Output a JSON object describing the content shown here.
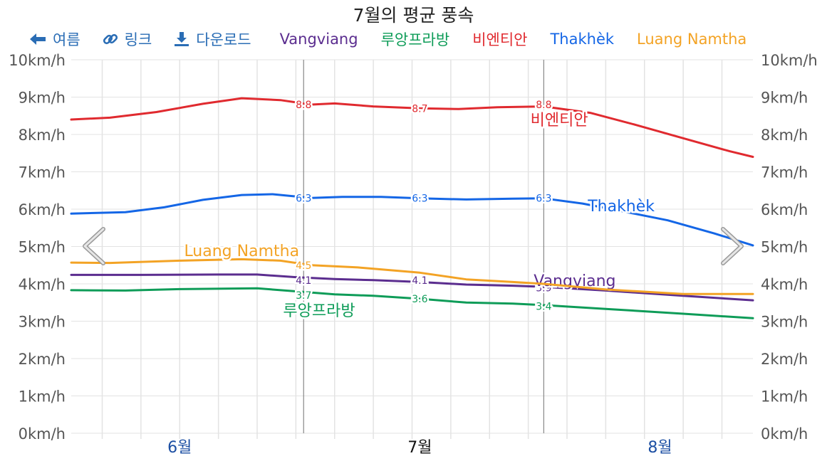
{
  "title": "7월의 평균 풍속",
  "toolbar": {
    "back_label": "여름",
    "link_label": "링크",
    "download_label": "다운로드"
  },
  "colors": {
    "toolbar": "#2a6db5",
    "grid": "#e3e3e3",
    "marker": "#888888",
    "axis_text": "#555555"
  },
  "chart_data": {
    "type": "line",
    "title": "7월의 평균 풍속",
    "y_unit": "km/h",
    "ylim": [
      0,
      10
    ],
    "y_ticks": [
      "0km/h",
      "1km/h",
      "2km/h",
      "3km/h",
      "4km/h",
      "5km/h",
      "6km/h",
      "7km/h",
      "8km/h",
      "9km/h",
      "10km/h"
    ],
    "x_ticks": [
      {
        "label": "6월",
        "day": -15,
        "current": false
      },
      {
        "label": "7월",
        "day": 16,
        "current": true
      },
      {
        "label": "8월",
        "day": 47,
        "current": false
      }
    ],
    "x_range_days": [
      -29,
      59
    ],
    "markers_day": [
      1,
      32
    ],
    "legend_position": "top",
    "grid": true,
    "series": [
      {
        "name": "Vangviang",
        "color": "#5b2d8f",
        "inline_label": "Vangviang",
        "inline_label_day": 36,
        "inline_label_value": 4.1,
        "points": [
          [
            -29,
            4.24
          ],
          [
            -20,
            4.24
          ],
          [
            -10,
            4.25
          ],
          [
            -5,
            4.25
          ],
          [
            0,
            4.18
          ],
          [
            5,
            4.13
          ],
          [
            10,
            4.1
          ],
          [
            16,
            4.05
          ],
          [
            22,
            3.98
          ],
          [
            28,
            3.95
          ],
          [
            32,
            3.92
          ],
          [
            40,
            3.82
          ],
          [
            50,
            3.68
          ],
          [
            59,
            3.56
          ]
        ],
        "data_labels": [
          {
            "day": 1,
            "value": 4.1,
            "text": "4.1"
          },
          {
            "day": 16,
            "value": 4.1,
            "text": "4.1"
          },
          {
            "day": 32,
            "value": 3.9,
            "text": "3.9"
          }
        ]
      },
      {
        "name": "루앙프라방",
        "color": "#0e9c58",
        "inline_label": "루앙프라방",
        "inline_label_day": 3,
        "inline_label_value": 3.3,
        "points": [
          [
            -29,
            3.83
          ],
          [
            -22,
            3.82
          ],
          [
            -15,
            3.86
          ],
          [
            -5,
            3.88
          ],
          [
            0,
            3.8
          ],
          [
            5,
            3.72
          ],
          [
            10,
            3.68
          ],
          [
            16,
            3.6
          ],
          [
            22,
            3.5
          ],
          [
            28,
            3.47
          ],
          [
            32,
            3.43
          ],
          [
            40,
            3.33
          ],
          [
            50,
            3.2
          ],
          [
            59,
            3.08
          ]
        ],
        "data_labels": [
          {
            "day": 1,
            "value": 3.7,
            "text": "3.7"
          },
          {
            "day": 16,
            "value": 3.6,
            "text": "3.6"
          },
          {
            "day": 32,
            "value": 3.4,
            "text": "3.4"
          }
        ]
      },
      {
        "name": "비엔티안",
        "color": "#e02a2f",
        "inline_label": "비엔티안",
        "inline_label_day": 34,
        "inline_label_value": 8.4,
        "points": [
          [
            -29,
            8.4
          ],
          [
            -24,
            8.45
          ],
          [
            -18,
            8.6
          ],
          [
            -12,
            8.82
          ],
          [
            -7,
            8.97
          ],
          [
            -2,
            8.92
          ],
          [
            2,
            8.8
          ],
          [
            5,
            8.83
          ],
          [
            10,
            8.75
          ],
          [
            16,
            8.7
          ],
          [
            21,
            8.68
          ],
          [
            26,
            8.73
          ],
          [
            32,
            8.75
          ],
          [
            38,
            8.58
          ],
          [
            44,
            8.25
          ],
          [
            50,
            7.9
          ],
          [
            56,
            7.55
          ],
          [
            59,
            7.4
          ]
        ],
        "data_labels": [
          {
            "day": 1,
            "value": 8.8,
            "text": "8.8"
          },
          {
            "day": 16,
            "value": 8.7,
            "text": "8.7"
          },
          {
            "day": 32,
            "value": 8.8,
            "text": "8.8"
          }
        ]
      },
      {
        "name": "Thakhèk",
        "color": "#1466e6",
        "inline_label": "Thakhèk",
        "inline_label_day": 42,
        "inline_label_value": 6.1,
        "points": [
          [
            -29,
            5.88
          ],
          [
            -22,
            5.92
          ],
          [
            -17,
            6.05
          ],
          [
            -12,
            6.25
          ],
          [
            -7,
            6.38
          ],
          [
            -3,
            6.4
          ],
          [
            2,
            6.3
          ],
          [
            6,
            6.33
          ],
          [
            11,
            6.33
          ],
          [
            16,
            6.29
          ],
          [
            22,
            6.26
          ],
          [
            28,
            6.28
          ],
          [
            32,
            6.29
          ],
          [
            37,
            6.15
          ],
          [
            42,
            5.95
          ],
          [
            48,
            5.7
          ],
          [
            54,
            5.35
          ],
          [
            59,
            5.03
          ]
        ],
        "data_labels": [
          {
            "day": 1,
            "value": 6.3,
            "text": "6.3"
          },
          {
            "day": 16,
            "value": 6.3,
            "text": "6.3"
          },
          {
            "day": 32,
            "value": 6.3,
            "text": "6.3"
          }
        ]
      },
      {
        "name": "Luang Namtha",
        "color": "#f3a325",
        "inline_label": "Luang Namtha",
        "inline_label_day": -7,
        "inline_label_value": 4.9,
        "points": [
          [
            -29,
            4.57
          ],
          [
            -24,
            4.56
          ],
          [
            -15,
            4.62
          ],
          [
            -7,
            4.66
          ],
          [
            -2,
            4.62
          ],
          [
            2,
            4.5
          ],
          [
            8,
            4.44
          ],
          [
            16,
            4.3
          ],
          [
            22,
            4.12
          ],
          [
            28,
            4.05
          ],
          [
            32,
            4.0
          ],
          [
            40,
            3.85
          ],
          [
            50,
            3.73
          ],
          [
            59,
            3.73
          ]
        ],
        "data_labels": [
          {
            "day": 1,
            "value": 4.5,
            "text": "4.5"
          }
        ]
      }
    ]
  }
}
